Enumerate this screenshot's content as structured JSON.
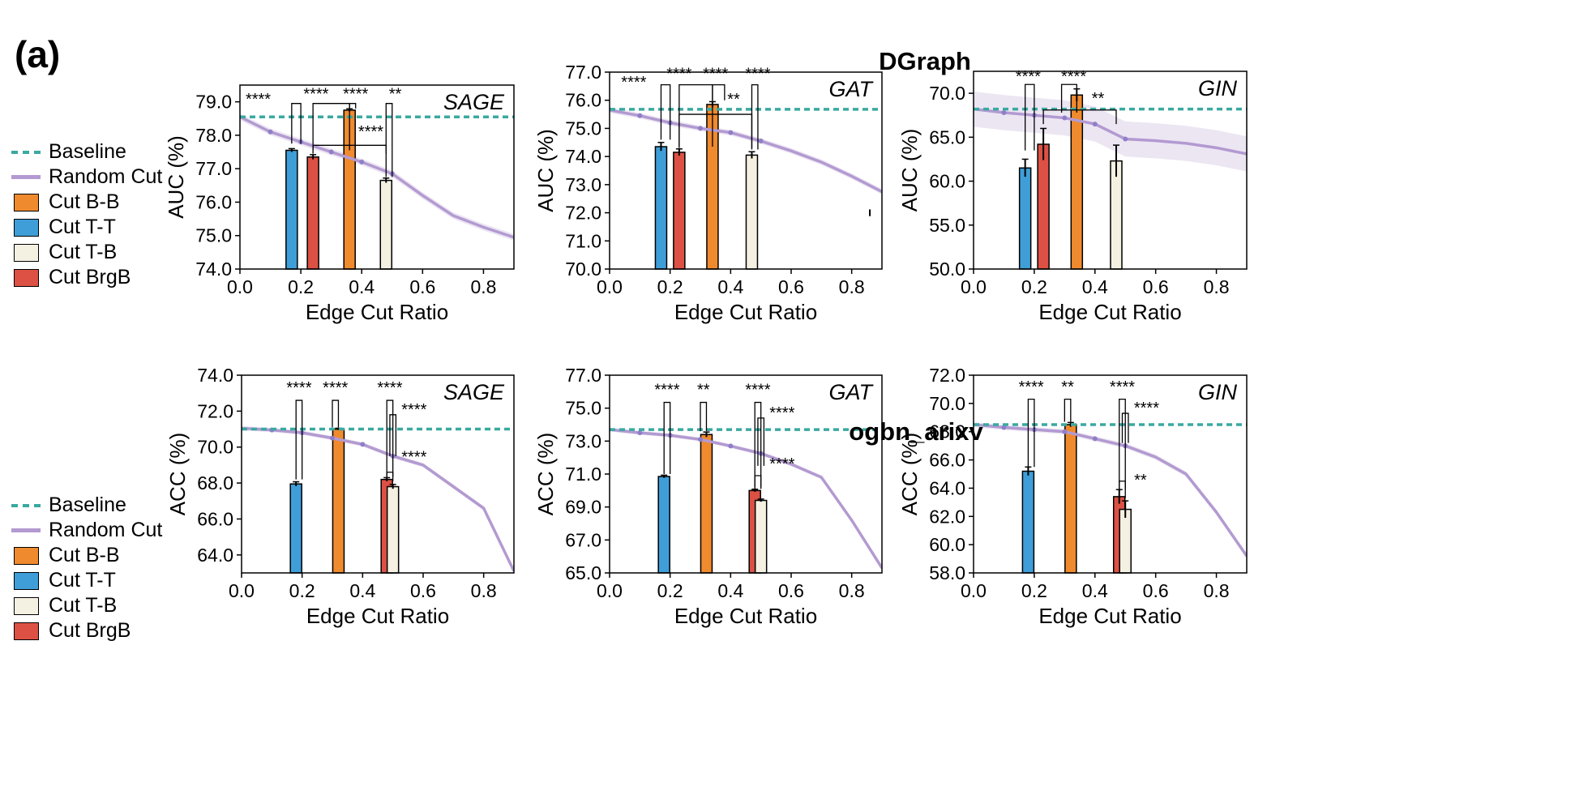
{
  "figure": {
    "panel_label": "(a)",
    "row_titles": [
      "DGraph",
      "ogbn_arixv"
    ],
    "legend": [
      {
        "label": "Baseline",
        "kind": "dashed",
        "color": "#3aa9a1"
      },
      {
        "label": "Random Cut",
        "kind": "line",
        "color": "#b39ad1"
      },
      {
        "label": "Cut B-B",
        "kind": "box",
        "color": "#f08a2e"
      },
      {
        "label": "Cut T-T",
        "kind": "box",
        "color": "#3f9ed8"
      },
      {
        "label": "Cut T-B",
        "kind": "box",
        "color": "#f4f0e2"
      },
      {
        "label": "Cut BrgB",
        "kind": "box",
        "color": "#dc5144"
      }
    ]
  },
  "chart_data": [
    {
      "type": "bar",
      "dataset": "DGraph",
      "model": "SAGE",
      "xlabel": "Edge Cut Ratio",
      "ylabel": "AUC (%)",
      "xlim": [
        0,
        0.9
      ],
      "ylim": [
        74,
        79.5
      ],
      "xticks": [
        "0.0",
        "0.2",
        "0.4",
        "0.6",
        "0.8"
      ],
      "xtick_values": [
        0,
        0.2,
        0.4,
        0.6,
        0.8
      ],
      "yticks": [
        "74.0",
        "75.0",
        "76.0",
        "77.0",
        "78.0",
        "79.0"
      ],
      "ytick_values": [
        74,
        75,
        76,
        77,
        78,
        79
      ],
      "baseline": 78.55,
      "random_cut": {
        "x": [
          0,
          0.1,
          0.2,
          0.3,
          0.4,
          0.5,
          0.6,
          0.7,
          0.8,
          0.9
        ],
        "y": [
          78.55,
          78.1,
          77.8,
          77.5,
          77.2,
          76.85,
          76.2,
          75.6,
          75.25,
          74.95
        ],
        "band": 0.1
      },
      "bars": [
        {
          "series": "Cut T-T",
          "x": 0.17,
          "value": 77.55,
          "err": 0.05
        },
        {
          "series": "Cut BrgB",
          "x": 0.24,
          "value": 77.35,
          "err": 0.07
        },
        {
          "series": "Cut B-B",
          "x": 0.36,
          "value": 78.75,
          "err": 0.04
        },
        {
          "series": "Cut T-B",
          "x": 0.48,
          "value": 76.65,
          "err": 0.07
        }
      ],
      "annotations": [
        {
          "text": "****",
          "ax": 0.06,
          "ay": 78.92
        },
        {
          "text": "****",
          "ax": 0.25,
          "ay": 79.08
        },
        {
          "text": "****",
          "ax": 0.38,
          "ay": 79.08
        },
        {
          "text": "**",
          "ax": 0.51,
          "ay": 79.08
        },
        {
          "text": "****",
          "ax": 0.43,
          "ay": 77.95
        }
      ],
      "brackets": [
        {
          "x1": 0.17,
          "x2": 0.2,
          "y1": 77.75,
          "y2": 78.95
        },
        {
          "x1": 0.24,
          "x2": 0.36,
          "y1": 77.55,
          "y2": 78.95
        },
        {
          "x1": 0.36,
          "x2": 0.38,
          "y1": 78.8,
          "y2": 78.95
        },
        {
          "x1": 0.48,
          "x2": 0.5,
          "y1": 76.75,
          "y2": 78.95
        },
        {
          "x1": 0.24,
          "x2": 0.48,
          "y1": 77.45,
          "y2": 77.7
        }
      ]
    },
    {
      "type": "bar",
      "dataset": "DGraph",
      "model": "GAT",
      "xlabel": "Edge Cut Ratio",
      "ylabel": "AUC (%)",
      "xlim": [
        0,
        0.9
      ],
      "ylim": [
        70,
        77
      ],
      "xticks": [
        "0.0",
        "0.2",
        "0.4",
        "0.6",
        "0.8"
      ],
      "xtick_values": [
        0,
        0.2,
        0.4,
        0.6,
        0.8
      ],
      "yticks": [
        "70.0",
        "71.0",
        "72.0",
        "73.0",
        "74.0",
        "75.0",
        "76.0",
        "77.0"
      ],
      "ytick_values": [
        70,
        71,
        72,
        73,
        74,
        75,
        76,
        77
      ],
      "baseline": 75.68,
      "random_cut": {
        "x": [
          0,
          0.1,
          0.2,
          0.3,
          0.4,
          0.5,
          0.6,
          0.7,
          0.8,
          0.9
        ],
        "y": [
          75.65,
          75.45,
          75.2,
          75.0,
          74.85,
          74.55,
          74.2,
          73.8,
          73.3,
          72.75
        ],
        "band": 0.1
      },
      "bars": [
        {
          "series": "Cut T-T",
          "x": 0.17,
          "value": 74.35,
          "err": 0.15
        },
        {
          "series": "Cut BrgB",
          "x": 0.23,
          "value": 74.15,
          "err": 0.12
        },
        {
          "series": "Cut B-B",
          "x": 0.34,
          "value": 75.85,
          "err": 0.1
        },
        {
          "series": "Cut T-B",
          "x": 0.47,
          "value": 74.05,
          "err": 0.12
        }
      ],
      "annotations": [
        {
          "text": "****",
          "ax": 0.08,
          "ay": 76.45
        },
        {
          "text": "****",
          "ax": 0.23,
          "ay": 76.75
        },
        {
          "text": "****",
          "ax": 0.35,
          "ay": 76.75
        },
        {
          "text": "****",
          "ax": 0.49,
          "ay": 76.75
        },
        {
          "text": "**",
          "ax": 0.41,
          "ay": 75.85
        }
      ],
      "brackets": [
        {
          "x1": 0.17,
          "x2": 0.2,
          "y1": 74.6,
          "y2": 76.55
        },
        {
          "x1": 0.23,
          "x2": 0.34,
          "y1": 74.35,
          "y2": 76.55
        },
        {
          "x1": 0.34,
          "x2": 0.38,
          "y1": 76.0,
          "y2": 76.55
        },
        {
          "x1": 0.47,
          "x2": 0.49,
          "y1": 74.25,
          "y2": 76.55
        },
        {
          "x1": 0.23,
          "x2": 0.47,
          "y1": 74.3,
          "y2": 75.5
        }
      ],
      "extra_errorbars": [
        {
          "x": 0.86,
          "y": 72.0,
          "err": 0.12
        }
      ]
    },
    {
      "type": "bar",
      "dataset": "DGraph",
      "model": "GIN",
      "xlabel": "Edge Cut Ratio",
      "ylabel": "AUC (%)",
      "xlim": [
        0,
        0.9
      ],
      "ylim": [
        50,
        72.5
      ],
      "xticks": [
        "0.0",
        "0.2",
        "0.4",
        "0.6",
        "0.8"
      ],
      "xtick_values": [
        0,
        0.2,
        0.4,
        0.6,
        0.8
      ],
      "yticks": [
        "50.0",
        "55.0",
        "60.0",
        "65.0",
        "70.0"
      ],
      "ytick_values": [
        50,
        55,
        60,
        65,
        70
      ],
      "baseline": 68.2,
      "random_cut": {
        "x": [
          0,
          0.1,
          0.2,
          0.3,
          0.4,
          0.5,
          0.6,
          0.7,
          0.8,
          0.9
        ],
        "y": [
          68.2,
          67.8,
          67.5,
          67.2,
          66.5,
          64.8,
          64.6,
          64.3,
          63.8,
          63.1
        ],
        "band": 2.0
      },
      "bars": [
        {
          "series": "Cut T-T",
          "x": 0.17,
          "value": 61.5,
          "err": 1.0
        },
        {
          "series": "Cut BrgB",
          "x": 0.23,
          "value": 64.2,
          "err": 1.8
        },
        {
          "series": "Cut B-B",
          "x": 0.34,
          "value": 69.8,
          "err": 0.7
        },
        {
          "series": "Cut T-B",
          "x": 0.47,
          "value": 62.3,
          "err": 1.8
        }
      ],
      "annotations": [
        {
          "text": "****",
          "ax": 0.18,
          "ay": 71.3
        },
        {
          "text": "****",
          "ax": 0.33,
          "ay": 71.3
        },
        {
          "text": "**",
          "ax": 0.41,
          "ay": 68.8
        }
      ],
      "brackets": [
        {
          "x1": 0.17,
          "x2": 0.2,
          "y1": 63.5,
          "y2": 71.0
        },
        {
          "x1": 0.29,
          "x2": 0.34,
          "y1": 67.8,
          "y2": 71.0
        },
        {
          "x1": 0.23,
          "x2": 0.47,
          "y1": 66.5,
          "y2": 68.1
        }
      ]
    },
    {
      "type": "bar",
      "dataset": "ogbn_arixv",
      "model": "SAGE",
      "xlabel": "Edge Cut Ratio",
      "ylabel": "ACC (%)",
      "xlim": [
        0,
        0.9
      ],
      "ylim": [
        63,
        74
      ],
      "xticks": [
        "0.0",
        "0.2",
        "0.4",
        "0.6",
        "0.8"
      ],
      "xtick_values": [
        0,
        0.2,
        0.4,
        0.6,
        0.8
      ],
      "yticks": [
        "64.0",
        "66.0",
        "68.0",
        "70.0",
        "72.0",
        "74.0"
      ],
      "ytick_values": [
        64,
        66,
        68,
        70,
        72,
        74
      ],
      "baseline": 71.0,
      "random_cut": {
        "x": [
          0,
          0.1,
          0.2,
          0.3,
          0.4,
          0.5,
          0.6,
          0.7,
          0.8,
          0.9
        ],
        "y": [
          71.05,
          70.95,
          70.8,
          70.5,
          70.15,
          69.5,
          69.0,
          67.8,
          66.6,
          63.1
        ],
        "band": 0.12
      },
      "bars": [
        {
          "series": "Cut T-T",
          "x": 0.18,
          "value": 67.95,
          "err": 0.12
        },
        {
          "series": "Cut B-B",
          "x": 0.32,
          "value": 71.0,
          "err": 0.05
        },
        {
          "series": "Cut BrgB",
          "x": 0.48,
          "value": 68.2,
          "err": 0.1
        },
        {
          "series": "Cut T-B",
          "x": 0.5,
          "value": 67.8,
          "err": 0.12
        }
      ],
      "annotations": [
        {
          "text": "****",
          "ax": 0.19,
          "ay": 73.0
        },
        {
          "text": "****",
          "ax": 0.31,
          "ay": 73.0
        },
        {
          "text": "****",
          "ax": 0.49,
          "ay": 73.0
        },
        {
          "text": "****",
          "ax": 0.57,
          "ay": 71.8
        },
        {
          "text": "****",
          "ax": 0.57,
          "ay": 69.15
        }
      ],
      "brackets": [
        {
          "x1": 0.18,
          "x2": 0.2,
          "y1": 68.2,
          "y2": 72.6
        },
        {
          "x1": 0.3,
          "x2": 0.32,
          "y1": 71.1,
          "y2": 72.6
        },
        {
          "x1": 0.48,
          "x2": 0.5,
          "y1": 68.35,
          "y2": 72.6
        },
        {
          "x1": 0.49,
          "x2": 0.51,
          "y1": 69.5,
          "y2": 71.8
        },
        {
          "x1": 0.48,
          "x2": 0.5,
          "y1": 68.1,
          "y2": 68.6
        }
      ]
    },
    {
      "type": "bar",
      "dataset": "ogbn_arixv",
      "model": "GAT",
      "xlabel": "Edge Cut Ratio",
      "ylabel": "ACC (%)",
      "xlim": [
        0,
        0.9
      ],
      "ylim": [
        65,
        77
      ],
      "xticks": [
        "0.0",
        "0.2",
        "0.4",
        "0.6",
        "0.8"
      ],
      "xtick_values": [
        0,
        0.2,
        0.4,
        0.6,
        0.8
      ],
      "yticks": [
        "65.0",
        "67.0",
        "69.0",
        "71.0",
        "73.0",
        "75.0",
        "77.0"
      ],
      "ytick_values": [
        65,
        67,
        69,
        71,
        73,
        75,
        77
      ],
      "baseline": 73.7,
      "random_cut": {
        "x": [
          0,
          0.1,
          0.2,
          0.3,
          0.4,
          0.5,
          0.6,
          0.7,
          0.8,
          0.9
        ],
        "y": [
          73.7,
          73.5,
          73.35,
          73.1,
          72.7,
          72.25,
          71.6,
          70.8,
          68.2,
          65.3
        ],
        "band": 0.12
      },
      "bars": [
        {
          "series": "Cut T-T",
          "x": 0.18,
          "value": 70.85,
          "err": 0.08
        },
        {
          "series": "Cut B-B",
          "x": 0.32,
          "value": 73.4,
          "err": 0.15
        },
        {
          "series": "Cut BrgB",
          "x": 0.48,
          "value": 70.0,
          "err": 0.08
        },
        {
          "series": "Cut T-B",
          "x": 0.5,
          "value": 69.4,
          "err": 0.08
        }
      ],
      "annotations": [
        {
          "text": "****",
          "ax": 0.19,
          "ay": 75.8
        },
        {
          "text": "**",
          "ax": 0.31,
          "ay": 75.8
        },
        {
          "text": "****",
          "ax": 0.49,
          "ay": 75.8
        },
        {
          "text": "****",
          "ax": 0.57,
          "ay": 74.4
        },
        {
          "text": "****",
          "ax": 0.57,
          "ay": 71.3
        }
      ],
      "brackets": [
        {
          "x1": 0.18,
          "x2": 0.2,
          "y1": 71.0,
          "y2": 75.35
        },
        {
          "x1": 0.3,
          "x2": 0.32,
          "y1": 73.6,
          "y2": 75.35
        },
        {
          "x1": 0.48,
          "x2": 0.5,
          "y1": 70.2,
          "y2": 75.35
        },
        {
          "x1": 0.49,
          "x2": 0.51,
          "y1": 71.5,
          "y2": 74.4
        },
        {
          "x1": 0.48,
          "x2": 0.5,
          "y1": 70.1,
          "y2": 70.9
        }
      ]
    },
    {
      "type": "bar",
      "dataset": "ogbn_arixv",
      "model": "GIN",
      "xlabel": "Edge Cut Ratio",
      "ylabel": "ACC (%)",
      "xlim": [
        0,
        0.9
      ],
      "ylim": [
        58,
        72
      ],
      "xticks": [
        "0.0",
        "0.2",
        "0.4",
        "0.6",
        "0.8"
      ],
      "xtick_values": [
        0,
        0.2,
        0.4,
        0.6,
        0.8
      ],
      "yticks": [
        "58.0",
        "60.0",
        "62.0",
        "64.0",
        "66.0",
        "68.0",
        "70.0",
        "72.0"
      ],
      "ytick_values": [
        58,
        60,
        62,
        64,
        66,
        68,
        70,
        72
      ],
      "baseline": 68.5,
      "random_cut": {
        "x": [
          0,
          0.1,
          0.2,
          0.3,
          0.4,
          0.5,
          0.6,
          0.7,
          0.8,
          0.9
        ],
        "y": [
          68.5,
          68.3,
          68.15,
          68.0,
          67.5,
          67.0,
          66.2,
          65.0,
          62.3,
          59.2
        ],
        "band": 0.18
      },
      "bars": [
        {
          "series": "Cut T-T",
          "x": 0.18,
          "value": 65.2,
          "err": 0.3
        },
        {
          "series": "Cut B-B",
          "x": 0.32,
          "value": 68.5,
          "err": 0.15
        },
        {
          "series": "Cut BrgB",
          "x": 0.48,
          "value": 63.4,
          "err": 0.5
        },
        {
          "series": "Cut T-B",
          "x": 0.5,
          "value": 62.5,
          "err": 0.6
        }
      ],
      "annotations": [
        {
          "text": "****",
          "ax": 0.19,
          "ay": 70.8
        },
        {
          "text": "**",
          "ax": 0.31,
          "ay": 70.8
        },
        {
          "text": "****",
          "ax": 0.49,
          "ay": 70.8
        },
        {
          "text": "****",
          "ax": 0.57,
          "ay": 69.3
        },
        {
          "text": "**",
          "ax": 0.55,
          "ay": 64.2
        }
      ],
      "brackets": [
        {
          "x1": 0.18,
          "x2": 0.2,
          "y1": 65.5,
          "y2": 70.3
        },
        {
          "x1": 0.3,
          "x2": 0.32,
          "y1": 68.7,
          "y2": 70.3
        },
        {
          "x1": 0.48,
          "x2": 0.5,
          "y1": 63.9,
          "y2": 70.3
        },
        {
          "x1": 0.49,
          "x2": 0.51,
          "y1": 67.2,
          "y2": 69.3
        },
        {
          "x1": 0.48,
          "x2": 0.5,
          "y1": 63.3,
          "y2": 64.5
        }
      ]
    }
  ]
}
